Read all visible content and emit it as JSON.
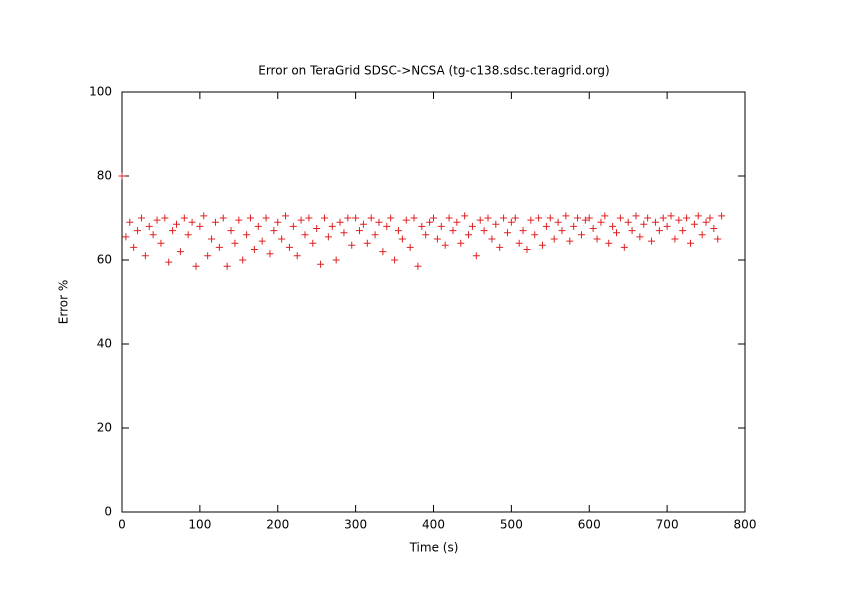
{
  "chart_data": {
    "type": "scatter",
    "title": "Error on TeraGrid SDSC->NCSA (tg-c138.sdsc.teragrid.org)",
    "x_label": "Time (s)",
    "y_label": "Error %",
    "color": "#e02020",
    "xlim": [
      0,
      800
    ],
    "xticks": [
      0,
      100,
      200,
      300,
      400,
      500,
      600,
      700,
      800
    ],
    "ylim": [
      0,
      100
    ],
    "yticks": [
      0,
      20,
      40,
      60,
      80,
      100
    ],
    "x": [
      0,
      5,
      10,
      15,
      20,
      25,
      30,
      35,
      40,
      45,
      50,
      55,
      60,
      65,
      70,
      75,
      80,
      85,
      90,
      95,
      100,
      105,
      110,
      115,
      120,
      125,
      130,
      135,
      140,
      145,
      150,
      155,
      160,
      165,
      170,
      175,
      180,
      185,
      190,
      195,
      200,
      205,
      210,
      215,
      220,
      225,
      230,
      235,
      240,
      245,
      250,
      255,
      260,
      265,
      270,
      275,
      280,
      285,
      290,
      295,
      300,
      305,
      310,
      315,
      320,
      325,
      330,
      335,
      340,
      345,
      350,
      355,
      360,
      365,
      370,
      375,
      380,
      385,
      390,
      395,
      400,
      405,
      410,
      415,
      420,
      425,
      430,
      435,
      440,
      445,
      450,
      455,
      460,
      465,
      470,
      475,
      480,
      485,
      490,
      495,
      500,
      505,
      510,
      515,
      520,
      525,
      530,
      535,
      540,
      545,
      550,
      555,
      560,
      565,
      570,
      575,
      580,
      585,
      590,
      595,
      600,
      605,
      610,
      615,
      620,
      625,
      630,
      635,
      640,
      645,
      650,
      655,
      660,
      665,
      670,
      675,
      680,
      685,
      690,
      695,
      700,
      705,
      710,
      715,
      720,
      725,
      730,
      735,
      740,
      745,
      750,
      755,
      760,
      765,
      770
    ],
    "values": [
      80,
      65.5,
      69,
      63,
      67,
      70,
      61,
      68,
      66,
      69.5,
      64,
      70,
      59.5,
      67,
      68.5,
      62,
      70,
      66,
      69,
      58.5,
      68,
      70.5,
      61,
      65,
      69,
      63,
      70,
      58.5,
      67,
      64,
      69.5,
      60,
      66,
      70,
      62.5,
      68,
      64.5,
      70,
      61.5,
      67,
      69,
      65,
      70.5,
      63,
      68,
      61,
      69.5,
      66,
      70,
      64,
      67.5,
      59,
      70,
      65.5,
      68,
      60,
      69,
      66.5,
      70,
      63.5,
      70,
      67,
      68.5,
      64,
      70,
      66,
      69,
      62,
      68,
      70,
      60,
      67,
      65,
      69.5,
      63,
      70,
      58.5,
      68,
      66,
      69,
      70,
      65,
      68,
      63.5,
      70,
      67,
      69,
      64,
      70.5,
      66,
      68,
      61,
      69.5,
      67,
      70,
      65,
      68.5,
      63,
      70,
      66.5,
      69,
      70,
      64,
      67,
      62.5,
      69.5,
      66,
      70,
      63.5,
      68,
      70,
      65,
      69,
      67,
      70.5,
      64.5,
      68,
      70,
      66,
      69.5,
      70,
      67.5,
      65,
      69,
      70.5,
      64,
      68,
      66.5,
      70,
      63,
      69,
      67,
      70.5,
      65.5,
      68.5,
      70,
      64.5,
      69,
      67,
      70,
      68,
      70.5,
      65,
      69.5,
      67,
      70,
      64,
      68.5,
      70.5,
      66,
      69,
      70,
      67.5,
      65,
      70.5
    ]
  }
}
